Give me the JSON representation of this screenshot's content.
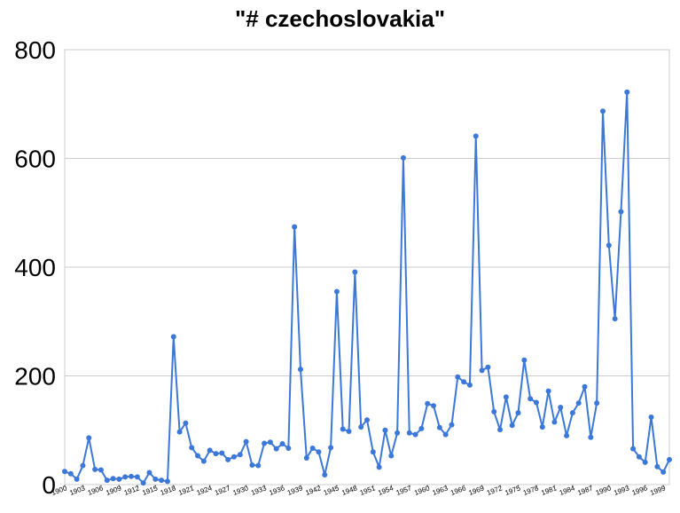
{
  "chart_data": {
    "type": "line",
    "title": "\"# czechoslovakia\"",
    "xlabel": "",
    "ylabel": "",
    "ylim": [
      0,
      800
    ],
    "yticks": [
      0,
      200,
      400,
      600,
      800
    ],
    "grid": true,
    "legend": "none",
    "line_color": "#3c78d8",
    "grid_color": "#cccccc",
    "x_tick_labels": [
      "1900",
      "1903",
      "1906",
      "1909",
      "1912",
      "1915",
      "1918",
      "1921",
      "1924",
      "1927",
      "1930",
      "1933",
      "1936",
      "1939",
      "1942",
      "1945",
      "1948",
      "1951",
      "1954",
      "1957",
      "1960",
      "1963",
      "1966",
      "1969",
      "1972",
      "1975",
      "1978",
      "1981",
      "1984",
      "1987",
      "1990",
      "1993",
      "1996",
      "1999"
    ],
    "x": [
      1900,
      1901,
      1902,
      1903,
      1904,
      1905,
      1906,
      1907,
      1908,
      1909,
      1910,
      1911,
      1912,
      1913,
      1914,
      1915,
      1916,
      1917,
      1918,
      1919,
      1920,
      1921,
      1922,
      1923,
      1924,
      1925,
      1926,
      1927,
      1928,
      1929,
      1930,
      1931,
      1932,
      1933,
      1934,
      1935,
      1936,
      1937,
      1938,
      1939,
      1940,
      1941,
      1942,
      1943,
      1944,
      1945,
      1946,
      1947,
      1948,
      1949,
      1950,
      1951,
      1952,
      1953,
      1954,
      1955,
      1956,
      1957,
      1958,
      1959,
      1960,
      1961,
      1962,
      1963,
      1964,
      1965,
      1966,
      1967,
      1968,
      1969,
      1970,
      1971,
      1972,
      1973,
      1974,
      1975,
      1976,
      1977,
      1978,
      1979,
      1980,
      1981,
      1982,
      1983,
      1984,
      1985,
      1986,
      1987,
      1988,
      1989,
      1990,
      1991,
      1992,
      1993,
      1994,
      1995,
      1996,
      1997,
      1998,
      1999,
      2000
    ],
    "series": [
      {
        "values": [
          24,
          20,
          10,
          35,
          86,
          28,
          27,
          8,
          11,
          10,
          14,
          15,
          14,
          3,
          22,
          10,
          8,
          6,
          272,
          97,
          113,
          68,
          53,
          43,
          63,
          57,
          58,
          46,
          51,
          55,
          79,
          36,
          35,
          76,
          78,
          66,
          75,
          67,
          474,
          212,
          49,
          67,
          60,
          18,
          68,
          355,
          102,
          98,
          391,
          106,
          119,
          60,
          32,
          100,
          53,
          95,
          601,
          95,
          92,
          103,
          149,
          145,
          105,
          92,
          110,
          198,
          189,
          183,
          641,
          210,
          216,
          134,
          101,
          161,
          109,
          132,
          229,
          158,
          151,
          106,
          172,
          115,
          142,
          90,
          132,
          150,
          180,
          87,
          150,
          687,
          440,
          305,
          502,
          722,
          66,
          51,
          41,
          124,
          33,
          23,
          46
        ]
      }
    ]
  }
}
